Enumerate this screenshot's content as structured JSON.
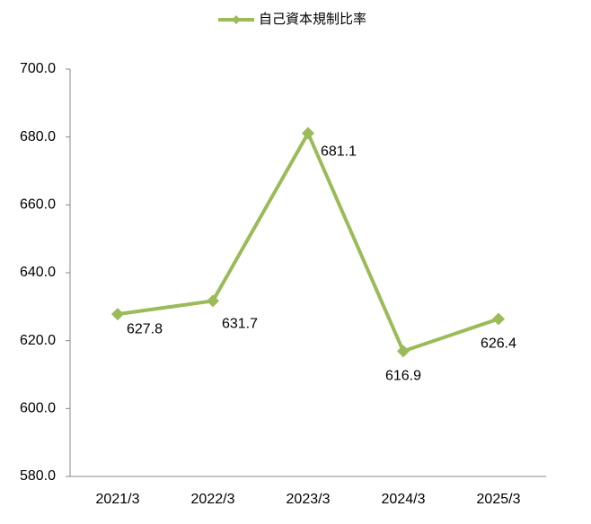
{
  "chart_data": {
    "type": "line",
    "legend": "top",
    "categories": [
      "2021/3",
      "2022/3",
      "2023/3",
      "2024/3",
      "2025/3"
    ],
    "series": [
      {
        "name": "自己資本規制比率",
        "color": "#9bbb59",
        "values": [
          627.8,
          631.7,
          681.1,
          616.9,
          626.4
        ]
      }
    ],
    "ylim": [
      580,
      700
    ],
    "yticks": [
      {
        "value": 580,
        "label": "580.0"
      },
      {
        "value": 600,
        "label": "600.0"
      },
      {
        "value": 620,
        "label": "620.0"
      },
      {
        "value": 640,
        "label": "640.0"
      },
      {
        "value": 660,
        "label": "660.0"
      },
      {
        "value": 680,
        "label": "680.0"
      },
      {
        "value": 700,
        "label": "700.0"
      }
    ],
    "grid": false
  }
}
